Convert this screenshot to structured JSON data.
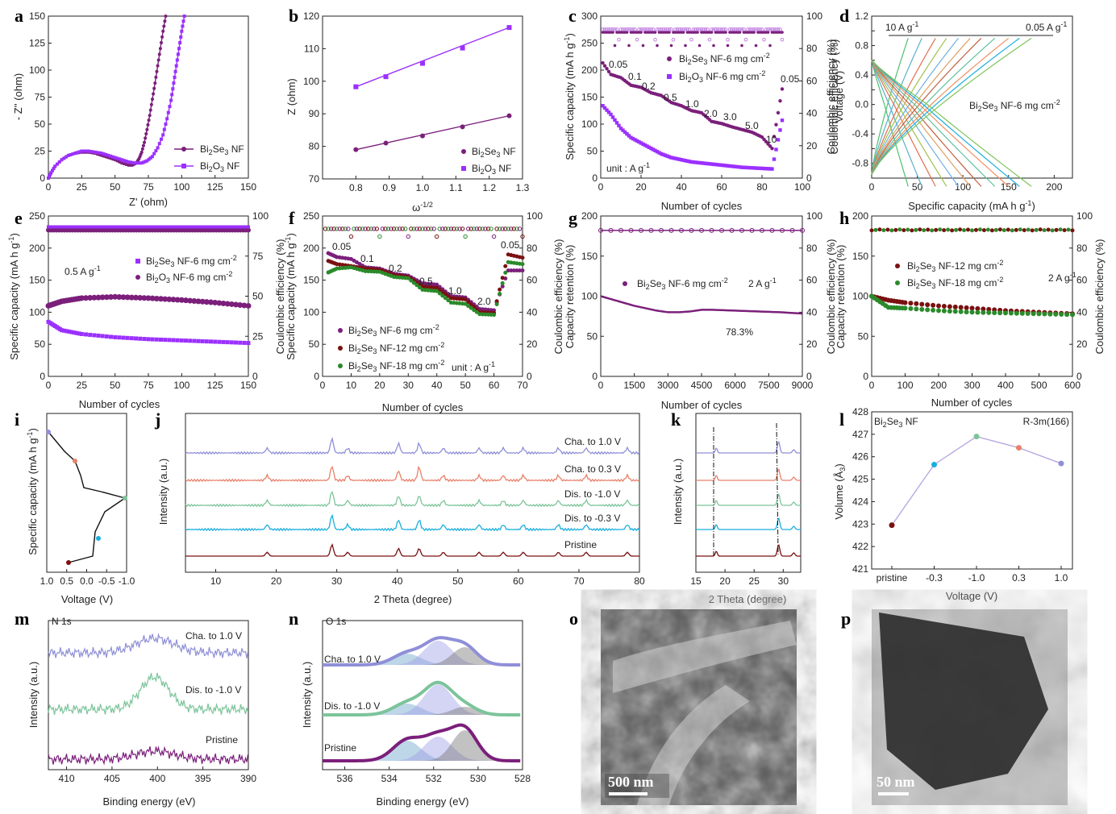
{
  "colors": {
    "dark": "#7b1f7b",
    "purple": "#9b30ff",
    "maroon": "#7a1010",
    "green": "#2a8a2a",
    "blue": "#8f8fd8",
    "orange": "#e8806a",
    "mint": "#7cc49a",
    "cyan": "#1aaede",
    "brown": "#7a1010",
    "lav": "#b9a9e0"
  },
  "panels": {
    "a": {
      "label": "a",
      "xlabel": "Z' (ohm)",
      "ylabel": "- Z'' (ohm)",
      "xlim": [
        0,
        150
      ],
      "ylim": [
        0,
        150
      ],
      "xticks": [
        "0",
        "25",
        "50",
        "75",
        "100",
        "125",
        "150"
      ],
      "yticks": [
        "0",
        "25",
        "50",
        "75",
        "100",
        "125",
        "150"
      ],
      "legend": [
        "Bi2Se3 NF",
        "Bi2O3 NF"
      ]
    },
    "b": {
      "label": "b",
      "xlabel": "ω^-1/2",
      "ylabel": "Z (ohm)",
      "xlim": [
        0.7,
        1.3
      ],
      "ylim": [
        70,
        120
      ],
      "xticks": [
        "0.8",
        "0.9",
        "1.0",
        "1.1",
        "1.2",
        "1.3"
      ],
      "yticks": [
        "70",
        "80",
        "90",
        "100",
        "110",
        "120"
      ],
      "legend": [
        "Bi2Se3 NF",
        "Bi2O3 NF"
      ]
    },
    "c": {
      "label": "c",
      "xlabel": "Number of cycles",
      "ylabel": "Specific capacity (mA h g-1)",
      "y2label": "Coulombic efficiency (%)",
      "xticks": [
        "0",
        "20",
        "40",
        "60",
        "80",
        "100"
      ],
      "yticks": [
        "0",
        "50",
        "100",
        "150",
        "200",
        "250",
        "300"
      ],
      "y2ticks": [
        "0",
        "20",
        "40",
        "60",
        "80",
        "100"
      ],
      "legend": [
        "Bi2Se3 NF-6 mg cm-2",
        "Bi2O3 NF-6 mg cm-2"
      ],
      "rates": [
        "0.05",
        "0.1",
        "0.2",
        "0.5",
        "1.0",
        "2.0",
        "3.0",
        "5.0",
        "10",
        "0.05"
      ],
      "unit": "unit : A g-1"
    },
    "d": {
      "label": "d",
      "xlabel": "Specific capacity (mA h g-1)",
      "ylabel": "Voltage (V)",
      "y2label": "Coulombic efficiency (%)",
      "xticks": [
        "0",
        "50",
        "100",
        "150",
        "200"
      ],
      "yticks": [
        "-0.8",
        "-0.4",
        "0.0",
        "0.4",
        "0.8",
        "1.2"
      ],
      "yticks_mid": [
        "-0.6",
        "-0.2",
        "0.2",
        "0.6",
        "1.0"
      ],
      "left_rate": "10 A g-1",
      "right_rate": "0.05 A g-1",
      "sample": "Bi2Se3 NF-6 mg cm-2"
    },
    "e": {
      "label": "e",
      "xlabel": "Number of cycles",
      "ylabel": "Specific capacity (mA h g-1)",
      "xticks": [
        "0",
        "25",
        "50",
        "75",
        "100",
        "125",
        "150"
      ],
      "yticks": [
        "0",
        "50",
        "100",
        "150",
        "200",
        "250"
      ],
      "y2ticks": [
        "0",
        "25",
        "50",
        "75",
        "100"
      ],
      "rate": "0.5 A g-1",
      "legend": [
        "Bi2Se3 NF-6 mg cm-2",
        "Bi2O3 NF-6 mg cm-2"
      ]
    },
    "f": {
      "label": "f",
      "xlabel": "Number of cycles",
      "ylabel": "Specific capacity (mA h g-1)",
      "y2label": "Coulombic efficiency (%)",
      "xticks": [
        "0",
        "10",
        "20",
        "30",
        "40",
        "50",
        "60",
        "70"
      ],
      "yticks": [
        "0",
        "50",
        "100",
        "150",
        "200",
        "250"
      ],
      "y2ticks": [
        "0",
        "20",
        "40",
        "60",
        "80",
        "100"
      ],
      "rates": [
        "0.05",
        "0.1",
        "0.2",
        "0.5",
        "1.0",
        "2.0",
        "0.05"
      ],
      "unit": "unit : A g-1",
      "legend": [
        "Bi2Se3 NF-6 mg cm-2",
        "Bi2Se3 NF-12 mg cm-2",
        "Bi2Se3 NF-18 mg cm-2"
      ]
    },
    "g": {
      "label": "g",
      "xlabel": "Number of cycles",
      "ylabel": "Capacity retention (%)",
      "y2label": "Coulombic efficiency (%)",
      "xticks": [
        "0",
        "1500",
        "3000",
        "4500",
        "6000",
        "7500",
        "9000"
      ],
      "yticks": [
        "0",
        "50",
        "100",
        "150",
        "200"
      ],
      "y2ticks": [
        "0",
        "20",
        "40",
        "60",
        "80",
        "100"
      ],
      "legend": [
        "Bi2Se3 NF-6 mg cm-2"
      ],
      "rate": "2 A g-1",
      "retention": "78.3%"
    },
    "h": {
      "label": "h",
      "xlabel": "Number of cycles",
      "ylabel": "Capacity retention (%)",
      "y2label": "Coulombic efficiency (%)",
      "xticks": [
        "0",
        "100",
        "200",
        "300",
        "400",
        "500",
        "600"
      ],
      "yticks": [
        "0",
        "50",
        "100",
        "150",
        "200"
      ],
      "y2ticks": [
        "0",
        "20",
        "40",
        "60",
        "80",
        "100"
      ],
      "legend": [
        "Bi2Se3 NF-12 mg cm-2",
        "Bi2Se3 NF-18 mg cm-2"
      ],
      "rate": "2 A g-1"
    },
    "i": {
      "label": "i",
      "xlabel": "Voltage (V)",
      "ylabel": "Specific capacity (mA h g-1)",
      "xticks": [
        "1.0",
        "0.5",
        "0.0",
        "-0.5",
        "-1.0"
      ]
    },
    "j": {
      "label": "j",
      "xlabel": "2 Theta (degree)",
      "ylabel": "Intensity (a.u.)",
      "xticks": [
        "10",
        "20",
        "30",
        "40",
        "50",
        "60",
        "70",
        "80"
      ],
      "traces": [
        "Cha. to 1.0 V",
        "Cha. to 0.3 V",
        "Dis. to -1.0 V",
        "Dis. to -0.3 V",
        "Pristine"
      ]
    },
    "k": {
      "label": "k",
      "xlabel": "2 Theta (degree)",
      "ylabel": "Intensity (a.u.)",
      "xticks": [
        "15",
        "20",
        "25",
        "30"
      ]
    },
    "l": {
      "label": "l",
      "xlabel": "Voltage (V)",
      "ylabel": "Volume (Å3)",
      "xticks": [
        "pristine",
        "-0.3",
        "-1.0",
        "0.3",
        "1.0"
      ],
      "yticks": [
        "421",
        "422",
        "423",
        "424",
        "425",
        "426",
        "427",
        "428"
      ],
      "sample": "Bi2Se3 NF",
      "space_group": "R-3m(166)"
    },
    "m": {
      "label": "m",
      "title": "N 1s",
      "xlabel": "Binding energy (eV)",
      "ylabel": "Intensity (a.u.)",
      "xticks": [
        "410",
        "405",
        "400",
        "395",
        "390"
      ],
      "traces": [
        "Cha. to 1.0 V",
        "Dis. to -1.0 V",
        "Pristine"
      ]
    },
    "n": {
      "label": "n",
      "title": "O 1s",
      "xlabel": "Binding energy (eV)",
      "ylabel": "Intensity (a.u.)",
      "xticks": [
        "536",
        "534",
        "532",
        "530",
        "528"
      ],
      "traces": [
        "Cha. to 1.0 V",
        "Dis. to -1.0 V",
        "Pristine"
      ]
    },
    "o": {
      "label": "o",
      "scale": "500 nm"
    },
    "p": {
      "label": "p",
      "scale": "50 nm"
    }
  },
  "chart_data": [
    {
      "id": "a",
      "type": "line",
      "title": "",
      "xlabel": "Z' (ohm)",
      "ylabel": "- Z'' (ohm)",
      "series": [
        {
          "name": "Bi2Se3 NF",
          "x": [
            0,
            2,
            5,
            10,
            15,
            20,
            25,
            30,
            35,
            40,
            45,
            50,
            55,
            60,
            63,
            66,
            68,
            70,
            72,
            74,
            76,
            78,
            80,
            82,
            84,
            86,
            88
          ],
          "y": [
            0,
            5,
            11,
            17,
            21,
            23,
            24,
            24,
            23,
            21,
            19,
            17,
            14,
            12,
            12,
            14,
            18,
            24,
            33,
            45,
            58,
            73,
            88,
            104,
            120,
            136,
            150
          ]
        },
        {
          "name": "Bi2O3 NF",
          "x": [
            0,
            2,
            5,
            10,
            15,
            20,
            25,
            30,
            35,
            40,
            45,
            50,
            55,
            60,
            65,
            70,
            74,
            78,
            82,
            86,
            89,
            92,
            94,
            96,
            98,
            100,
            102
          ],
          "y": [
            0,
            5,
            11,
            17,
            21,
            23,
            25,
            25,
            24,
            23,
            21,
            19,
            17,
            15,
            14,
            14,
            16,
            20,
            28,
            40,
            55,
            72,
            88,
            104,
            120,
            136,
            150
          ]
        }
      ]
    },
    {
      "id": "b",
      "type": "scatter",
      "xlabel": "ω^-1/2",
      "ylabel": "Z (ohm)",
      "series": [
        {
          "name": "Bi2Se3 NF",
          "x": [
            0.8,
            0.89,
            1.0,
            1.12,
            1.26
          ],
          "y": [
            79.0,
            81.0,
            83.2,
            86.0,
            89.4
          ]
        },
        {
          "name": "Bi2O3 NF",
          "x": [
            0.8,
            0.89,
            1.0,
            1.12,
            1.26
          ],
          "y": [
            98.3,
            101.4,
            105.5,
            110.2,
            116.5
          ]
        }
      ]
    },
    {
      "id": "c",
      "type": "scatter",
      "xlabel": "Number of cycles",
      "ylabel": "Specific capacity (mA h g-1)",
      "series": [
        {
          "name": "Bi2Se3 NF-6 mg cm-2",
          "x": [
            2,
            5,
            10,
            15,
            20,
            25,
            30,
            35,
            40,
            45,
            50,
            55,
            60,
            65,
            70,
            75,
            80,
            85,
            90
          ],
          "y": [
            208,
            192,
            186,
            172,
            168,
            158,
            153,
            140,
            134,
            125,
            121,
            105,
            101,
            95,
            90,
            85,
            76,
            55,
            165
          ]
        },
        {
          "name": "Bi2O3 NF-6 mg cm-2",
          "x": [
            2,
            5,
            10,
            15,
            20,
            25,
            30,
            35,
            40,
            45,
            50,
            55,
            60,
            65,
            70,
            75,
            80,
            85,
            90
          ],
          "y": [
            130,
            118,
            92,
            75,
            65,
            55,
            45,
            38,
            34,
            30,
            28,
            26,
            24,
            22,
            20,
            19,
            18,
            17,
            107
          ]
        }
      ]
    },
    {
      "id": "d",
      "type": "line",
      "xlabel": "Specific capacity (mA h g-1)",
      "ylabel": "Voltage (V)",
      "series": [
        {
          "name": "0.05 A g-1",
          "values": [
            175
          ]
        },
        {
          "name": "10 A g-1",
          "values": [
            40
          ]
        }
      ]
    },
    {
      "id": "e",
      "type": "scatter",
      "xlabel": "Number of cycles",
      "ylabel": "Specific capacity (mA h g-1)",
      "series": [
        {
          "name": "Bi2Se3 NF-6 mg cm-2",
          "x": [
            0,
            10,
            25,
            50,
            75,
            100,
            125,
            150
          ],
          "y": [
            85,
            72,
            66,
            61,
            58,
            56,
            54,
            52
          ]
        },
        {
          "name": "Bi2O3 NF-6 mg cm-2",
          "x": [
            0,
            10,
            25,
            50,
            75,
            100,
            125,
            150
          ],
          "y": [
            110,
            117,
            122,
            124,
            122,
            119,
            115,
            110
          ]
        }
      ]
    },
    {
      "id": "f",
      "type": "scatter",
      "xlabel": "Number of cycles",
      "ylabel": "Specific capacity (mA h g-1)",
      "series": [
        {
          "name": "Bi2Se3 NF-6 mg cm-2",
          "x": [
            2,
            5,
            10,
            15,
            20,
            25,
            30,
            35,
            40,
            45,
            50,
            55,
            60,
            65,
            70
          ],
          "y": [
            192,
            186,
            183,
            170,
            168,
            160,
            157,
            145,
            143,
            125,
            123,
            105,
            103,
            165,
            165
          ]
        },
        {
          "name": "Bi2Se3 NF-12 mg cm-2",
          "x": [
            2,
            5,
            10,
            15,
            20,
            25,
            30,
            35,
            40,
            45,
            50,
            55,
            60,
            65,
            70
          ],
          "y": [
            180,
            175,
            172,
            168,
            166,
            158,
            155,
            140,
            138,
            122,
            120,
            100,
            99,
            190,
            185
          ]
        },
        {
          "name": "Bi2Se3 NF-18 mg cm-2",
          "x": [
            2,
            5,
            10,
            15,
            20,
            25,
            30,
            35,
            40,
            45,
            50,
            55,
            60,
            65,
            70
          ],
          "y": [
            162,
            168,
            170,
            164,
            163,
            155,
            153,
            135,
            133,
            115,
            113,
            97,
            96,
            178,
            175
          ]
        }
      ]
    },
    {
      "id": "g",
      "type": "line",
      "xlabel": "Number of cycles",
      "ylabel": "Capacity retention (%)",
      "series": [
        {
          "name": "Bi2Se3 NF-6 mg cm-2",
          "x": [
            0,
            500,
            1000,
            1500,
            2000,
            2500,
            3000,
            3500,
            4000,
            4500,
            5000,
            6000,
            7000,
            8000,
            9000
          ],
          "y": [
            100,
            96,
            92,
            88,
            85,
            82,
            80,
            80,
            81,
            83,
            83,
            82,
            81,
            80,
            78.3
          ]
        }
      ]
    },
    {
      "id": "h",
      "type": "line",
      "xlabel": "Number of cycles",
      "ylabel": "Capacity retention (%)",
      "series": [
        {
          "name": "Bi2Se3 NF-12 mg cm-2",
          "x": [
            0,
            50,
            100,
            200,
            300,
            400,
            500,
            600
          ],
          "y": [
            100,
            95,
            92,
            88,
            85,
            82,
            80,
            78
          ]
        },
        {
          "name": "Bi2Se3 NF-18 mg cm-2",
          "x": [
            0,
            50,
            100,
            200,
            300,
            400,
            500,
            600
          ],
          "y": [
            100,
            86,
            85,
            82,
            80,
            79,
            78,
            77
          ]
        }
      ]
    },
    {
      "id": "l",
      "type": "line",
      "xlabel": "Voltage (V)",
      "ylabel": "Volume (Å3)",
      "categories": [
        "pristine",
        "-0.3",
        "-1.0",
        "0.3",
        "1.0"
      ],
      "values": [
        422.95,
        425.65,
        426.9,
        426.4,
        425.7
      ],
      "ylim": [
        421,
        428
      ]
    }
  ]
}
